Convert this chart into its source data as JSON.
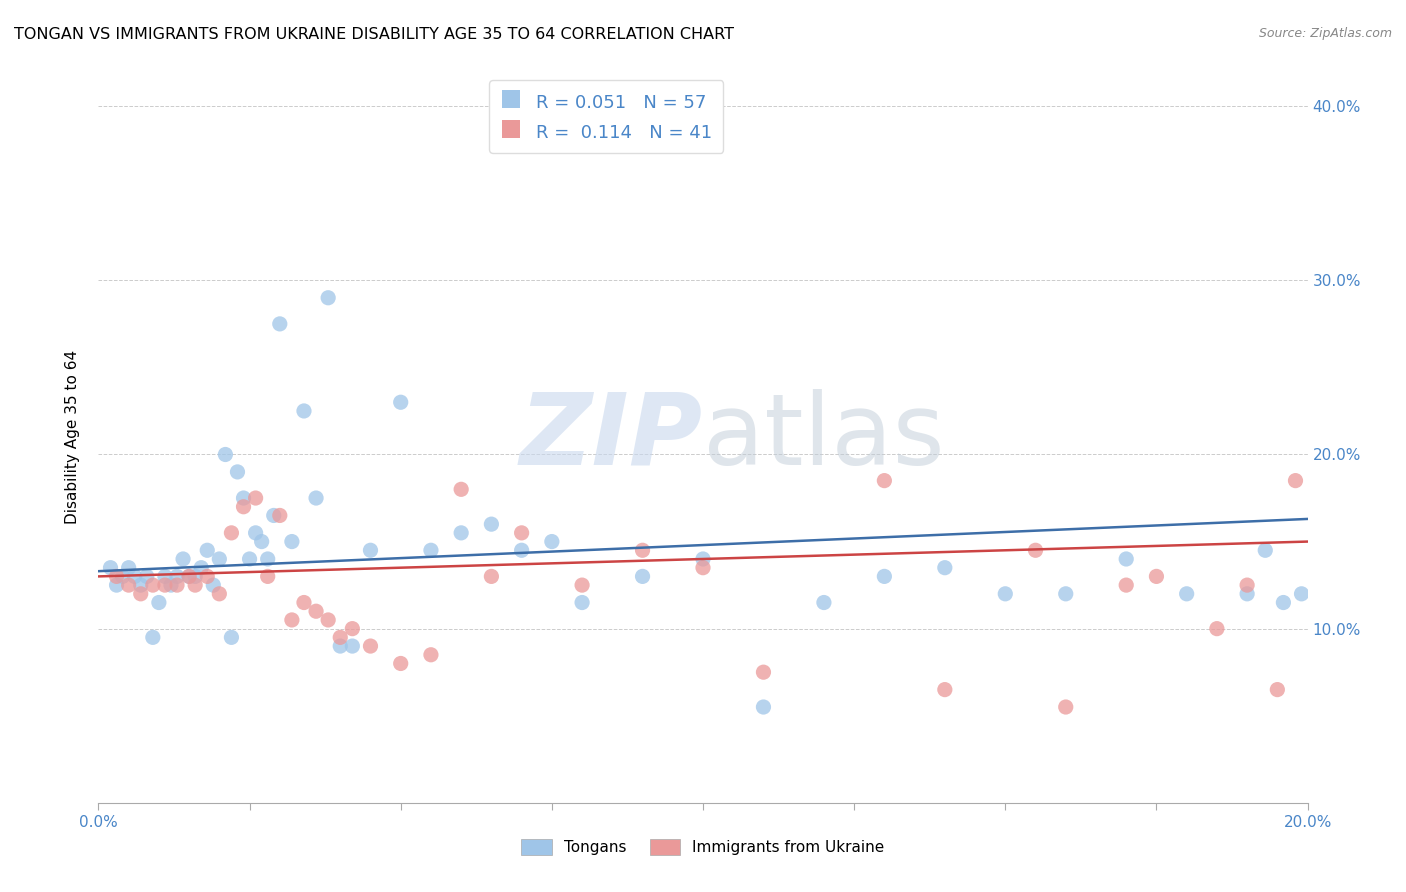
{
  "title": "TONGAN VS IMMIGRANTS FROM UKRAINE DISABILITY AGE 35 TO 64 CORRELATION CHART",
  "source": "Source: ZipAtlas.com",
  "ylabel_label": "Disability Age 35 to 64",
  "xlim": [
    0.0,
    0.2
  ],
  "ylim": [
    0.0,
    0.42
  ],
  "x_ticks": [
    0.0,
    0.025,
    0.05,
    0.075,
    0.1,
    0.125,
    0.15,
    0.175,
    0.2
  ],
  "x_tick_labels": [
    "0.0%",
    "",
    "",
    "",
    "",
    "",
    "",
    "",
    "20.0%"
  ],
  "y_ticks": [
    0.1,
    0.2,
    0.3,
    0.4
  ],
  "y_tick_labels_right": [
    "10.0%",
    "20.0%",
    "30.0%",
    "40.0%"
  ],
  "blue_color": "#9fc5e8",
  "pink_color": "#ea9999",
  "blue_line_color": "#3d6ea8",
  "pink_line_color": "#cc4444",
  "right_axis_color": "#4a86c8",
  "legend_R_blue": "0.051",
  "legend_N_blue": "57",
  "legend_R_pink": "0.114",
  "legend_N_pink": "41",
  "watermark_zip": "ZIP",
  "watermark_atlas": "atlas",
  "legend_label_blue": "Tongans",
  "legend_label_pink": "Immigrants from Ukraine",
  "blue_scatter_x": [
    0.002,
    0.003,
    0.004,
    0.005,
    0.006,
    0.007,
    0.008,
    0.009,
    0.01,
    0.011,
    0.012,
    0.013,
    0.014,
    0.015,
    0.016,
    0.017,
    0.018,
    0.019,
    0.02,
    0.021,
    0.022,
    0.023,
    0.024,
    0.025,
    0.026,
    0.027,
    0.028,
    0.029,
    0.03,
    0.032,
    0.034,
    0.036,
    0.038,
    0.04,
    0.042,
    0.045,
    0.05,
    0.055,
    0.06,
    0.065,
    0.07,
    0.075,
    0.08,
    0.09,
    0.1,
    0.11,
    0.12,
    0.13,
    0.14,
    0.15,
    0.16,
    0.17,
    0.18,
    0.19,
    0.193,
    0.196,
    0.199
  ],
  "blue_scatter_y": [
    0.135,
    0.125,
    0.13,
    0.135,
    0.13,
    0.125,
    0.13,
    0.095,
    0.115,
    0.13,
    0.125,
    0.13,
    0.14,
    0.13,
    0.13,
    0.135,
    0.145,
    0.125,
    0.14,
    0.2,
    0.095,
    0.19,
    0.175,
    0.14,
    0.155,
    0.15,
    0.14,
    0.165,
    0.275,
    0.15,
    0.225,
    0.175,
    0.29,
    0.09,
    0.09,
    0.145,
    0.23,
    0.145,
    0.155,
    0.16,
    0.145,
    0.15,
    0.115,
    0.13,
    0.14,
    0.055,
    0.115,
    0.13,
    0.135,
    0.12,
    0.12,
    0.14,
    0.12,
    0.12,
    0.145,
    0.115,
    0.12
  ],
  "pink_scatter_x": [
    0.003,
    0.005,
    0.007,
    0.009,
    0.011,
    0.013,
    0.015,
    0.016,
    0.018,
    0.02,
    0.022,
    0.024,
    0.026,
    0.028,
    0.03,
    0.032,
    0.034,
    0.036,
    0.038,
    0.04,
    0.042,
    0.045,
    0.05,
    0.055,
    0.06,
    0.065,
    0.07,
    0.08,
    0.09,
    0.1,
    0.11,
    0.13,
    0.14,
    0.155,
    0.16,
    0.17,
    0.175,
    0.185,
    0.19,
    0.195,
    0.198
  ],
  "pink_scatter_y": [
    0.13,
    0.125,
    0.12,
    0.125,
    0.125,
    0.125,
    0.13,
    0.125,
    0.13,
    0.12,
    0.155,
    0.17,
    0.175,
    0.13,
    0.165,
    0.105,
    0.115,
    0.11,
    0.105,
    0.095,
    0.1,
    0.09,
    0.08,
    0.085,
    0.18,
    0.13,
    0.155,
    0.125,
    0.145,
    0.135,
    0.075,
    0.185,
    0.065,
    0.145,
    0.055,
    0.125,
    0.13,
    0.1,
    0.125,
    0.065,
    0.185
  ]
}
